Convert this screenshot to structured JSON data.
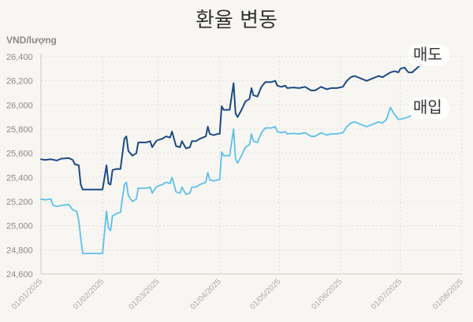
{
  "chart_data": {
    "type": "line",
    "title": "환율 변동",
    "ylabel": "VND/lượng",
    "ylim": [
      24600,
      26400
    ],
    "yticks": [
      "24,600",
      "24,800",
      "25,000",
      "25,200",
      "25,400",
      "25,600",
      "25,800",
      "26,000",
      "26,200",
      "26,400"
    ],
    "ytick_values": [
      24600,
      24800,
      25000,
      25200,
      25400,
      25600,
      25800,
      26000,
      26200,
      26400
    ],
    "xlim": [
      "2025-01-01",
      "2025-08-01"
    ],
    "xticks": [
      "01/01/2025",
      "01/02/2025",
      "01/03/2025",
      "01/04/2025",
      "01/05/2025",
      "01/06/2025",
      "01/07/2025",
      "01/08/2025"
    ],
    "xtick_dates": [
      "2025-01-01",
      "2025-02-01",
      "2025-03-01",
      "2025-04-01",
      "2025-05-01",
      "2025-06-01",
      "2025-07-01",
      "2025-08-01"
    ],
    "grid": true,
    "series": [
      {
        "name": "매도",
        "color": "#1a4a85",
        "points": [
          [
            "2025-01-01",
            25550
          ],
          [
            "2025-01-03",
            25545
          ],
          [
            "2025-01-06",
            25550
          ],
          [
            "2025-01-09",
            25540
          ],
          [
            "2025-01-11",
            25555
          ],
          [
            "2025-01-15",
            25560
          ],
          [
            "2025-01-17",
            25545
          ],
          [
            "2025-01-18",
            25510
          ],
          [
            "2025-01-20",
            25500
          ],
          [
            "2025-01-21",
            25340
          ],
          [
            "2025-01-22",
            25300
          ],
          [
            "2025-01-24",
            25300
          ],
          [
            "2025-01-27",
            25300
          ],
          [
            "2025-01-30",
            25300
          ],
          [
            "2025-02-01",
            25300
          ],
          [
            "2025-02-03",
            25500
          ],
          [
            "2025-02-04",
            25350
          ],
          [
            "2025-02-05",
            25340
          ],
          [
            "2025-02-06",
            25460
          ],
          [
            "2025-02-08",
            25470
          ],
          [
            "2025-02-10",
            25470
          ],
          [
            "2025-02-12",
            25720
          ],
          [
            "2025-02-13",
            25740
          ],
          [
            "2025-02-14",
            25620
          ],
          [
            "2025-02-16",
            25580
          ],
          [
            "2025-02-18",
            25600
          ],
          [
            "2025-02-19",
            25690
          ],
          [
            "2025-02-21",
            25690
          ],
          [
            "2025-02-23",
            25690
          ],
          [
            "2025-02-25",
            25700
          ],
          [
            "2025-02-26",
            25650
          ],
          [
            "2025-02-28",
            25700
          ],
          [
            "2025-03-01",
            25710
          ],
          [
            "2025-03-03",
            25720
          ],
          [
            "2025-03-05",
            25740
          ],
          [
            "2025-03-07",
            25730
          ],
          [
            "2025-03-08",
            25780
          ],
          [
            "2025-03-10",
            25660
          ],
          [
            "2025-03-12",
            25650
          ],
          [
            "2025-03-13",
            25700
          ],
          [
            "2025-03-15",
            25640
          ],
          [
            "2025-03-17",
            25650
          ],
          [
            "2025-03-18",
            25700
          ],
          [
            "2025-03-20",
            25700
          ],
          [
            "2025-03-22",
            25720
          ],
          [
            "2025-03-25",
            25740
          ],
          [
            "2025-03-26",
            25820
          ],
          [
            "2025-03-27",
            25760
          ],
          [
            "2025-03-29",
            25750
          ],
          [
            "2025-03-31",
            25760
          ],
          [
            "2025-04-01",
            25760
          ],
          [
            "2025-04-02",
            25990
          ],
          [
            "2025-04-03",
            25960
          ],
          [
            "2025-04-05",
            25960
          ],
          [
            "2025-04-06",
            25960
          ],
          [
            "2025-04-08",
            26180
          ],
          [
            "2025-04-09",
            25930
          ],
          [
            "2025-04-10",
            25900
          ],
          [
            "2025-04-12",
            25960
          ],
          [
            "2025-04-14",
            26030
          ],
          [
            "2025-04-16",
            26050
          ],
          [
            "2025-04-17",
            26140
          ],
          [
            "2025-04-18",
            26080
          ],
          [
            "2025-04-20",
            26070
          ],
          [
            "2025-04-22",
            26150
          ],
          [
            "2025-04-24",
            26190
          ],
          [
            "2025-04-27",
            26190
          ],
          [
            "2025-04-29",
            26200
          ],
          [
            "2025-04-30",
            26160
          ],
          [
            "2025-05-02",
            26150
          ],
          [
            "2025-05-04",
            26160
          ],
          [
            "2025-05-05",
            26140
          ],
          [
            "2025-05-08",
            26145
          ],
          [
            "2025-05-11",
            26140
          ],
          [
            "2025-05-14",
            26150
          ],
          [
            "2025-05-17",
            26120
          ],
          [
            "2025-05-19",
            26120
          ],
          [
            "2025-05-22",
            26150
          ],
          [
            "2025-05-25",
            26130
          ],
          [
            "2025-05-27",
            26140
          ],
          [
            "2025-05-30",
            26140
          ],
          [
            "2025-06-02",
            26150
          ],
          [
            "2025-06-04",
            26200
          ],
          [
            "2025-06-06",
            26230
          ],
          [
            "2025-06-08",
            26240
          ],
          [
            "2025-06-11",
            26220
          ],
          [
            "2025-06-14",
            26200
          ],
          [
            "2025-06-17",
            26220
          ],
          [
            "2025-06-20",
            26240
          ],
          [
            "2025-06-22",
            26230
          ],
          [
            "2025-06-24",
            26250
          ],
          [
            "2025-06-26",
            26270
          ],
          [
            "2025-06-28",
            26280
          ],
          [
            "2025-06-30",
            26270
          ],
          [
            "2025-07-01",
            26300
          ],
          [
            "2025-07-03",
            26310
          ],
          [
            "2025-07-05",
            26270
          ],
          [
            "2025-07-07",
            26270
          ],
          [
            "2025-07-09",
            26300
          ],
          [
            "2025-07-11",
            26330
          ]
        ]
      },
      {
        "name": "매입",
        "color": "#5bc0eb",
        "points": [
          [
            "2025-01-01",
            25220
          ],
          [
            "2025-01-03",
            25215
          ],
          [
            "2025-01-06",
            25220
          ],
          [
            "2025-01-07",
            25170
          ],
          [
            "2025-01-09",
            25160
          ],
          [
            "2025-01-12",
            25170
          ],
          [
            "2025-01-15",
            25175
          ],
          [
            "2025-01-17",
            25130
          ],
          [
            "2025-01-19",
            25120
          ],
          [
            "2025-01-20",
            25040
          ],
          [
            "2025-01-21",
            24900
          ],
          [
            "2025-01-22",
            24770
          ],
          [
            "2025-01-25",
            24770
          ],
          [
            "2025-01-28",
            24770
          ],
          [
            "2025-01-31",
            24770
          ],
          [
            "2025-02-01",
            24770
          ],
          [
            "2025-02-03",
            25120
          ],
          [
            "2025-02-04",
            24980
          ],
          [
            "2025-02-05",
            24960
          ],
          [
            "2025-02-06",
            25080
          ],
          [
            "2025-02-08",
            25100
          ],
          [
            "2025-02-10",
            25110
          ],
          [
            "2025-02-12",
            25340
          ],
          [
            "2025-02-13",
            25360
          ],
          [
            "2025-02-14",
            25250
          ],
          [
            "2025-02-16",
            25200
          ],
          [
            "2025-02-18",
            25220
          ],
          [
            "2025-02-19",
            25310
          ],
          [
            "2025-02-21",
            25310
          ],
          [
            "2025-02-23",
            25310
          ],
          [
            "2025-02-25",
            25320
          ],
          [
            "2025-02-26",
            25270
          ],
          [
            "2025-02-28",
            25320
          ],
          [
            "2025-03-01",
            25330
          ],
          [
            "2025-03-03",
            25340
          ],
          [
            "2025-03-05",
            25360
          ],
          [
            "2025-03-07",
            25350
          ],
          [
            "2025-03-08",
            25400
          ],
          [
            "2025-03-10",
            25280
          ],
          [
            "2025-03-12",
            25270
          ],
          [
            "2025-03-13",
            25320
          ],
          [
            "2025-03-15",
            25260
          ],
          [
            "2025-03-17",
            25270
          ],
          [
            "2025-03-18",
            25320
          ],
          [
            "2025-03-20",
            25320
          ],
          [
            "2025-03-22",
            25340
          ],
          [
            "2025-03-25",
            25360
          ],
          [
            "2025-03-26",
            25440
          ],
          [
            "2025-03-27",
            25380
          ],
          [
            "2025-03-29",
            25370
          ],
          [
            "2025-03-31",
            25380
          ],
          [
            "2025-04-01",
            25380
          ],
          [
            "2025-04-02",
            25610
          ],
          [
            "2025-04-03",
            25580
          ],
          [
            "2025-04-05",
            25580
          ],
          [
            "2025-04-06",
            25580
          ],
          [
            "2025-04-08",
            25800
          ],
          [
            "2025-04-09",
            25550
          ],
          [
            "2025-04-10",
            25520
          ],
          [
            "2025-04-12",
            25580
          ],
          [
            "2025-04-14",
            25650
          ],
          [
            "2025-04-16",
            25670
          ],
          [
            "2025-04-17",
            25760
          ],
          [
            "2025-04-18",
            25700
          ],
          [
            "2025-04-20",
            25690
          ],
          [
            "2025-04-22",
            25770
          ],
          [
            "2025-04-24",
            25810
          ],
          [
            "2025-04-27",
            25810
          ],
          [
            "2025-04-29",
            25820
          ],
          [
            "2025-04-30",
            25780
          ],
          [
            "2025-05-02",
            25770
          ],
          [
            "2025-05-04",
            25780
          ],
          [
            "2025-05-05",
            25760
          ],
          [
            "2025-05-08",
            25765
          ],
          [
            "2025-05-11",
            25760
          ],
          [
            "2025-05-14",
            25770
          ],
          [
            "2025-05-17",
            25740
          ],
          [
            "2025-05-19",
            25740
          ],
          [
            "2025-05-22",
            25770
          ],
          [
            "2025-05-25",
            25750
          ],
          [
            "2025-05-27",
            25760
          ],
          [
            "2025-05-30",
            25760
          ],
          [
            "2025-06-02",
            25770
          ],
          [
            "2025-06-04",
            25820
          ],
          [
            "2025-06-06",
            25850
          ],
          [
            "2025-06-08",
            25860
          ],
          [
            "2025-06-11",
            25840
          ],
          [
            "2025-06-14",
            25820
          ],
          [
            "2025-06-17",
            25840
          ],
          [
            "2025-06-20",
            25860
          ],
          [
            "2025-06-22",
            25850
          ],
          [
            "2025-06-24",
            25880
          ],
          [
            "2025-06-26",
            25980
          ],
          [
            "2025-06-28",
            25920
          ],
          [
            "2025-06-30",
            25880
          ],
          [
            "2025-07-03",
            25890
          ],
          [
            "2025-07-05",
            25900
          ],
          [
            "2025-07-07",
            25920
          ],
          [
            "2025-07-09",
            25940
          ],
          [
            "2025-07-11",
            25970
          ]
        ]
      }
    ]
  }
}
